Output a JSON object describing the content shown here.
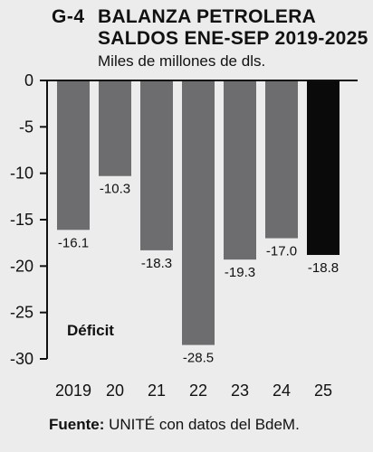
{
  "header": {
    "graph_number": "G-4",
    "title_line1": "BALANZA PETROLERA",
    "title_line2": "SALDOS ENE-SEP 2019-2025",
    "subtitle": "Miles de millones de dls."
  },
  "source": {
    "label": "Fuente:",
    "text": " UNITÉ con datos del BdeM."
  },
  "chart_data": {
    "type": "bar",
    "title": "BALANZA PETROLERA SALDOS ENE-SEP 2019-2025",
    "subtitle": "Miles de millones de dls.",
    "categories": [
      "2019",
      "20",
      "21",
      "22",
      "23",
      "24",
      "25"
    ],
    "values": [
      -16.1,
      -10.3,
      -18.3,
      -28.5,
      -19.3,
      -17.0,
      -18.8
    ],
    "value_labels": [
      "-16.1",
      "-10.3",
      "-18.3",
      "-28.5",
      "-19.3",
      "-17.0",
      "-18.8"
    ],
    "ylim": [
      -30,
      0
    ],
    "yticks": [
      0,
      -5,
      -10,
      -15,
      -20,
      -25,
      -30
    ],
    "ytick_labels": [
      "0",
      "-5",
      "-10",
      "-15",
      "-20",
      "-25",
      "-30"
    ],
    "annotation": "Déficit",
    "colors": {
      "bar": "#6d6d6f",
      "highlight_bar": "#0a0a0a",
      "axis": "#111111"
    },
    "highlight_index": 6,
    "grid": false
  }
}
